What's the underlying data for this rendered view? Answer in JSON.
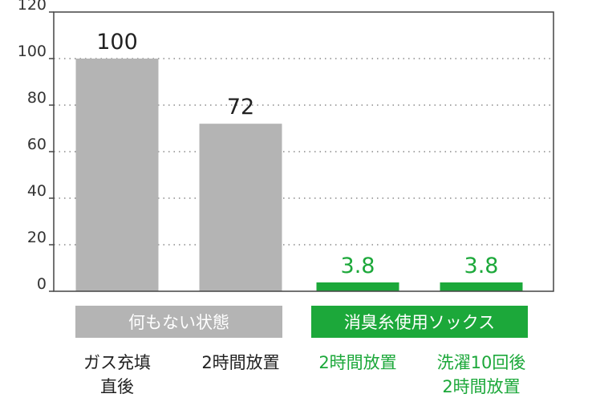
{
  "chart_data": {
    "type": "bar",
    "categories": [
      [
        "ガス充填",
        "直後"
      ],
      [
        "2時間放置"
      ],
      [
        "2時間放置"
      ],
      [
        "洗濯10回後",
        "2時間放置"
      ]
    ],
    "values": [
      100,
      72,
      3.8,
      3.8
    ],
    "value_labels": [
      "100",
      "72",
      "3.8",
      "3.8"
    ],
    "bar_colors": [
      "#b4b4b4",
      "#b4b4b4",
      "#1ca83a",
      "#1ca83a"
    ],
    "label_colors": [
      "#222222",
      "#222222",
      "#1ca83a",
      "#1ca83a"
    ],
    "yticks": [
      "0",
      "20",
      "40",
      "60",
      "80",
      "100",
      "120"
    ],
    "ylim": [
      0,
      120
    ],
    "grid": true,
    "groups": [
      {
        "label": "何もない状態",
        "members": [
          0,
          1
        ],
        "color": "#b4b4b4"
      },
      {
        "label": "消臭糸使用ソックス",
        "members": [
          2,
          3
        ],
        "color": "#1ca83a"
      }
    ],
    "title": "",
    "xlabel": "",
    "ylabel": ""
  }
}
